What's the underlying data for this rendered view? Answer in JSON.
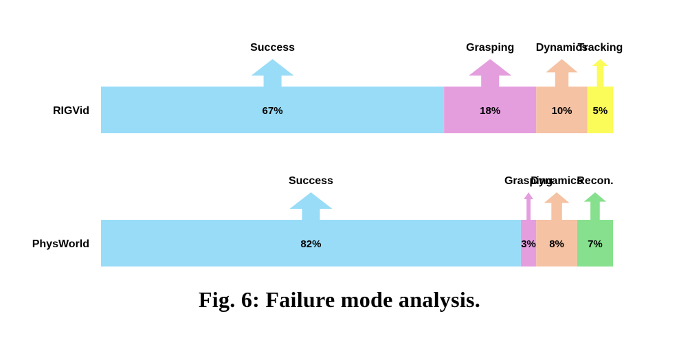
{
  "chart_data": {
    "type": "bar",
    "orientation": "horizontal",
    "stacked": true,
    "unit": "%",
    "rows": [
      {
        "label": "RIGVid",
        "segments": [
          {
            "name": "Success",
            "value": 67,
            "color": "#99dcf7"
          },
          {
            "name": "Grasping",
            "value": 18,
            "color": "#e49ede"
          },
          {
            "name": "Dynamics",
            "value": 10,
            "color": "#f5c2a3"
          },
          {
            "name": "Tracking",
            "value": 5,
            "color": "#fbfb5a"
          }
        ]
      },
      {
        "label": "PhysWorld",
        "segments": [
          {
            "name": "Success",
            "value": 82,
            "color": "#99dcf7"
          },
          {
            "name": "Grasping",
            "value": 3,
            "color": "#e49ede"
          },
          {
            "name": "Dynamics",
            "value": 8,
            "color": "#f5c2a3"
          },
          {
            "name": "Recon.",
            "value": 7,
            "color": "#86e08d"
          }
        ]
      }
    ],
    "grid": false,
    "legend": "none"
  },
  "caption": "Fig. 6: Failure mode analysis."
}
